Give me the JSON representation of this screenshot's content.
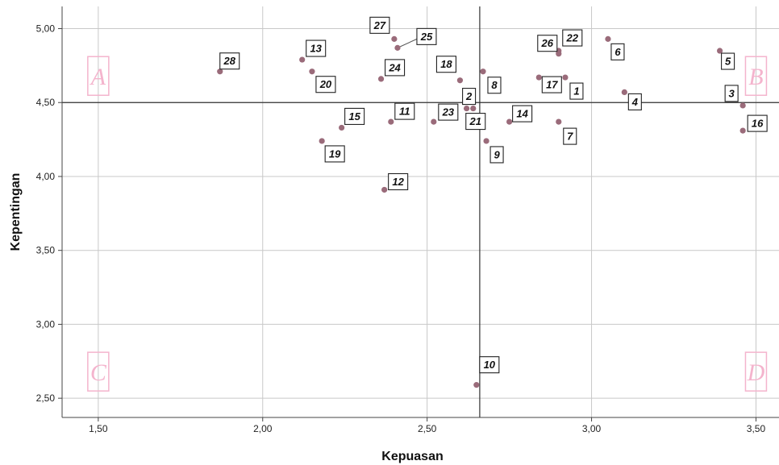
{
  "chart_data": {
    "type": "scatter",
    "xlabel": "Kepuasan",
    "ylabel": "Kepentingan",
    "xlim": [
      1.39,
      3.57
    ],
    "ylim": [
      2.37,
      5.15
    ],
    "x_ticks": [
      "1,50",
      "2,00",
      "2,50",
      "3,00",
      "3,50"
    ],
    "x_tick_values": [
      1.5,
      2.0,
      2.5,
      3.0,
      3.5
    ],
    "y_ticks": [
      "2,50",
      "3,00",
      "3,50",
      "4,00",
      "4,50",
      "5,00"
    ],
    "y_tick_values": [
      2.5,
      3.0,
      3.5,
      4.0,
      4.5,
      5.0
    ],
    "grid": true,
    "reference_lines": {
      "x": 2.66,
      "y": 4.5
    },
    "quadrant_labels": [
      {
        "text": "A",
        "x": 1.5,
        "y": 4.68
      },
      {
        "text": "B",
        "x": 3.5,
        "y": 4.68
      },
      {
        "text": "C",
        "x": 1.5,
        "y": 2.68
      },
      {
        "text": "D",
        "x": 3.5,
        "y": 2.68
      }
    ],
    "point_color": "#9a6b7a",
    "points": [
      {
        "label": "1",
        "x": 2.92,
        "y": 4.67
      },
      {
        "label": "2",
        "x": 2.62,
        "y": 4.46
      },
      {
        "label": "3",
        "x": 3.46,
        "y": 4.48
      },
      {
        "label": "4",
        "x": 3.1,
        "y": 4.57
      },
      {
        "label": "5",
        "x": 3.39,
        "y": 4.85
      },
      {
        "label": "6",
        "x": 3.05,
        "y": 4.93
      },
      {
        "label": "7",
        "x": 2.9,
        "y": 4.37
      },
      {
        "label": "8",
        "x": 2.67,
        "y": 4.71
      },
      {
        "label": "9",
        "x": 2.68,
        "y": 4.24
      },
      {
        "label": "10",
        "x": 2.65,
        "y": 2.59
      },
      {
        "label": "11",
        "x": 2.39,
        "y": 4.37
      },
      {
        "label": "12",
        "x": 2.37,
        "y": 3.91
      },
      {
        "label": "13",
        "x": 2.12,
        "y": 4.79
      },
      {
        "label": "14",
        "x": 2.75,
        "y": 4.37
      },
      {
        "label": "15",
        "x": 2.24,
        "y": 4.33
      },
      {
        "label": "16",
        "x": 3.46,
        "y": 4.31
      },
      {
        "label": "17",
        "x": 2.84,
        "y": 4.67
      },
      {
        "label": "18",
        "x": 2.6,
        "y": 4.65
      },
      {
        "label": "19",
        "x": 2.18,
        "y": 4.24
      },
      {
        "label": "20",
        "x": 2.15,
        "y": 4.71
      },
      {
        "label": "21",
        "x": 2.64,
        "y": 4.46
      },
      {
        "label": "22",
        "x": 2.9,
        "y": 4.85
      },
      {
        "label": "23",
        "x": 2.52,
        "y": 4.37
      },
      {
        "label": "24",
        "x": 2.36,
        "y": 4.66
      },
      {
        "label": "25",
        "x": 2.41,
        "y": 4.87
      },
      {
        "label": "26",
        "x": 2.9,
        "y": 4.83
      },
      {
        "label": "27",
        "x": 2.4,
        "y": 4.93
      },
      {
        "label": "28",
        "x": 1.87,
        "y": 4.71
      }
    ]
  }
}
